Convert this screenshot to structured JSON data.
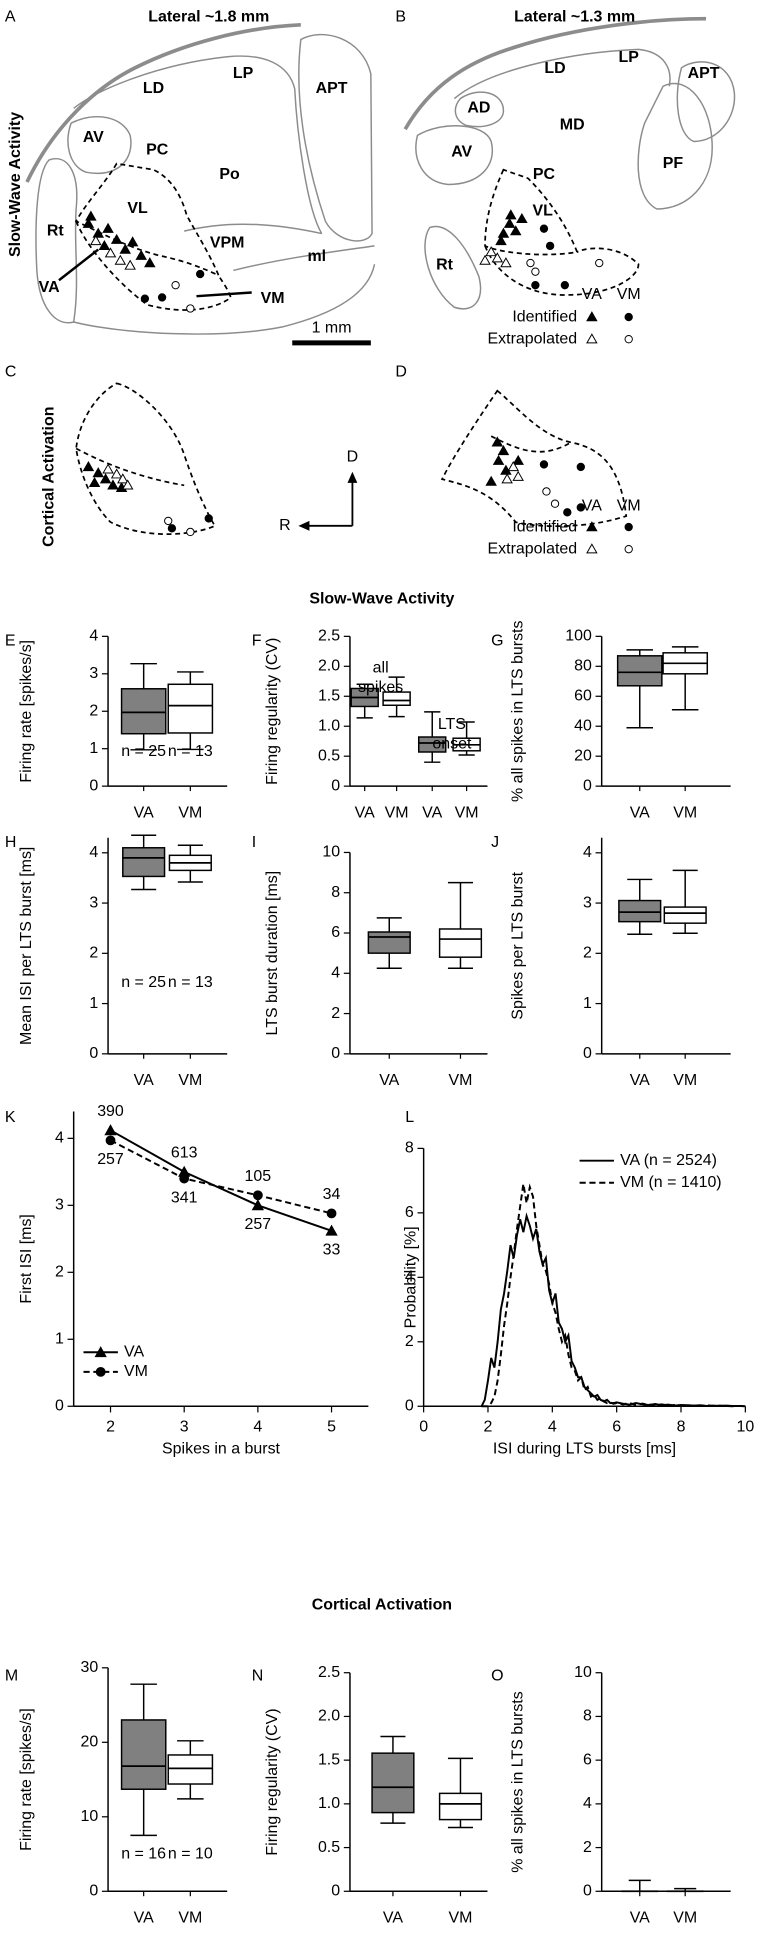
{
  "sections": [
    "Slow-Wave Activity",
    "Cortical Activation"
  ],
  "panels": [
    {
      "letter": "A",
      "title": "Lateral ~1.8 mm",
      "regions": [
        "LD",
        "LP",
        "APT",
        "AV",
        "PC",
        "Po",
        "VL",
        "Rt",
        "VPM",
        "ml"
      ],
      "nuclei": [
        "VA",
        "VM"
      ],
      "scale_bar": "1 mm"
    },
    {
      "letter": "B",
      "title": "Lateral ~1.3 mm",
      "regions": [
        "AD",
        "LD",
        "LP",
        "APT",
        "MD",
        "AV",
        "PF",
        "PC",
        "VL",
        "Rt"
      ],
      "legend": {
        "columns": [
          "VA",
          "VM"
        ],
        "rows": [
          "Identified",
          "Extrapolated"
        ]
      }
    },
    {
      "letter": "C"
    },
    {
      "letter": "D",
      "legend": {
        "columns": [
          "VA",
          "VM"
        ],
        "rows": [
          "Identified",
          "Extrapolated"
        ]
      }
    }
  ],
  "compass": [
    "D",
    "R"
  ],
  "chart_data": [
    {
      "type": "box",
      "panel": "E",
      "ylabel": "Firing rate [spikes/s]",
      "categories": [
        "VA",
        "VM"
      ],
      "colors": [
        "#808080",
        "#ffffff"
      ],
      "boxes": [
        {
          "min": 0.97,
          "q1": 1.4,
          "median": 1.97,
          "q3": 2.6,
          "max": 3.27
        },
        {
          "min": 0.98,
          "q1": 1.42,
          "median": 2.15,
          "q3": 2.72,
          "max": 3.05
        }
      ],
      "ylim": [
        0,
        4
      ],
      "yticks": [
        0,
        1,
        2,
        3,
        4
      ],
      "annotations": [
        "n = 25",
        "n = 13"
      ]
    },
    {
      "type": "box",
      "panel": "F",
      "ylabel": "Firing regularity (CV)",
      "categories": [
        "VA",
        "VM",
        "VA",
        "VM"
      ],
      "colors": [
        "#808080",
        "#ffffff",
        "#808080",
        "#ffffff"
      ],
      "boxes": [
        {
          "min": 1.14,
          "q1": 1.33,
          "median": 1.48,
          "q3": 1.63,
          "max": 1.7
        },
        {
          "min": 1.16,
          "q1": 1.35,
          "median": 1.43,
          "q3": 1.57,
          "max": 1.82
        },
        {
          "min": 0.4,
          "q1": 0.57,
          "median": 0.72,
          "q3": 0.82,
          "max": 1.24
        },
        {
          "min": 0.52,
          "q1": 0.59,
          "median": 0.69,
          "q3": 0.8,
          "max": 1.07
        }
      ],
      "ylim": [
        0,
        2.5
      ],
      "yticks": [
        0,
        0.5,
        {
          "value": 1,
          "label": "1.0"
        },
        1.5,
        {
          "value": 2,
          "label": "2.0"
        },
        2.5
      ],
      "group_labels": [
        [
          "all",
          "spikes"
        ],
        [
          "LTS",
          "onset"
        ]
      ]
    },
    {
      "type": "box",
      "panel": "G",
      "ylabel": "% all spikes in LTS bursts",
      "categories": [
        "VA",
        "VM"
      ],
      "colors": [
        "#808080",
        "#ffffff"
      ],
      "boxes": [
        {
          "min": 39,
          "q1": 67,
          "median": 76,
          "q3": 87,
          "max": 91
        },
        {
          "min": 51,
          "q1": 75,
          "median": 82,
          "q3": 89,
          "max": 93
        }
      ],
      "ylim": [
        0,
        100
      ],
      "yticks": [
        0,
        20,
        40,
        60,
        80,
        100
      ]
    },
    {
      "type": "box",
      "panel": "H",
      "ylabel": "Mean ISI per LTS burst [ms]",
      "categories": [
        "VA",
        "VM"
      ],
      "colors": [
        "#808080",
        "#ffffff"
      ],
      "boxes": [
        {
          "min": 3.27,
          "q1": 3.53,
          "median": 3.9,
          "q3": 4.1,
          "max": 4.35
        },
        {
          "min": 3.42,
          "q1": 3.65,
          "median": 3.8,
          "q3": 3.95,
          "max": 4.15
        }
      ],
      "ylim": [
        0,
        4.3
      ],
      "yticks": [
        0,
        1,
        2,
        3,
        4
      ],
      "annotations": [
        "n = 25",
        "n = 13"
      ]
    },
    {
      "type": "box",
      "panel": "I",
      "ylabel": "LTS burst duration [ms]",
      "categories": [
        "VA",
        "VM"
      ],
      "colors": [
        "#808080",
        "#ffffff"
      ],
      "boxes": [
        {
          "min": 4.25,
          "q1": 5.0,
          "median": 5.8,
          "q3": 6.05,
          "max": 6.75
        },
        {
          "min": 4.25,
          "q1": 4.8,
          "median": 5.7,
          "q3": 6.2,
          "max": 8.5
        }
      ],
      "ylim": [
        0,
        10
      ],
      "yticks": [
        0,
        2,
        4,
        6,
        8,
        10
      ]
    },
    {
      "type": "box",
      "panel": "J",
      "ylabel": "Spikes per LTS burst",
      "categories": [
        "VA",
        "VM"
      ],
      "colors": [
        "#808080",
        "#ffffff"
      ],
      "boxes": [
        {
          "min": 2.38,
          "q1": 2.63,
          "median": 2.82,
          "q3": 3.05,
          "max": 3.47
        },
        {
          "min": 2.4,
          "q1": 2.6,
          "median": 2.8,
          "q3": 2.92,
          "max": 3.65
        }
      ],
      "ylim": [
        0,
        4.3
      ],
      "yticks": [
        0,
        1,
        2,
        3,
        4
      ]
    },
    {
      "type": "line",
      "panel": "K",
      "xlabel": "Spikes in a burst",
      "ylabel": "First ISI [ms]",
      "x": [
        2,
        3,
        4,
        5
      ],
      "series": [
        {
          "name": "VA",
          "color": "#000000",
          "dash": false,
          "marker": "triangle",
          "values": [
            4.12,
            3.5,
            3.0,
            2.62
          ],
          "n": [
            390,
            613,
            257,
            33
          ]
        },
        {
          "name": "VM",
          "color": "#000000",
          "dash": true,
          "marker": "circle",
          "values": [
            3.97,
            3.4,
            3.15,
            2.88
          ],
          "n": [
            257,
            341,
            105,
            34
          ]
        }
      ],
      "xlim": [
        1.5,
        5.5
      ],
      "xticks": [
        2,
        3,
        4,
        5
      ],
      "ylim": [
        0,
        4.4
      ],
      "yticks": [
        0,
        1,
        2,
        3,
        4
      ],
      "legend": "lower left"
    },
    {
      "type": "line",
      "panel": "L",
      "xlabel": "ISI during LTS bursts [ms]",
      "ylabel": "Probability [%]",
      "x": [
        1.8,
        1.9,
        2.0,
        2.1,
        2.2,
        2.3,
        2.4,
        2.5,
        2.6,
        2.7,
        2.8,
        2.9,
        3.0,
        3.1,
        3.2,
        3.3,
        3.4,
        3.5,
        3.6,
        3.7,
        3.8,
        3.9,
        4.0,
        4.1,
        4.2,
        4.3,
        4.4,
        4.5,
        4.6,
        4.7,
        4.8,
        4.9,
        5.0,
        5.1,
        5.2,
        5.3,
        5.4,
        5.5,
        5.6,
        5.7,
        5.8,
        5.9,
        6.0,
        6.2,
        6.4,
        6.6,
        6.8,
        7.0,
        7.2,
        7.4,
        7.6,
        7.8,
        8.0,
        8.2,
        8.4,
        8.6,
        8.8,
        9.0,
        9.2,
        9.4,
        9.6,
        9.8,
        10.0
      ],
      "series": [
        {
          "name": "VA (n = 2524)",
          "color": "#000000",
          "dash": false,
          "values": [
            0,
            0.2,
            0.8,
            1.5,
            1.2,
            2.0,
            3.0,
            3.5,
            4.2,
            5.0,
            4.6,
            5.3,
            5.8,
            5.4,
            5.9,
            5.6,
            5.2,
            5.5,
            4.8,
            4.4,
            4.6,
            3.6,
            3.2,
            3.5,
            2.6,
            2.4,
            2.0,
            2.2,
            1.4,
            1.2,
            0.9,
            0.9,
            0.6,
            0.5,
            0.4,
            0.3,
            0.35,
            0.2,
            0.15,
            0.2,
            0.1,
            0.1,
            0.12,
            0.08,
            0.05,
            0.1,
            0.06,
            0.04,
            0.07,
            0.03,
            0.05,
            0.02,
            0.04,
            0.03,
            0.02,
            0.03,
            0.01,
            0.02,
            0.01,
            0.02,
            0.01,
            0.01,
            0
          ]
        },
        {
          "name": "VM (n = 1410)",
          "color": "#000000",
          "dash": true,
          "values": [
            0,
            0,
            0,
            0.1,
            0.3,
            0.8,
            1.6,
            2.5,
            3.2,
            4.0,
            4.7,
            5.5,
            6.2,
            6.9,
            6.3,
            6.8,
            6.5,
            5.6,
            5.0,
            4.4,
            4.2,
            3.8,
            3.2,
            2.9,
            2.4,
            2.0,
            2.2,
            1.6,
            1.2,
            1.1,
            0.8,
            0.9,
            0.5,
            0.6,
            0.3,
            0.35,
            0.2,
            0.25,
            0.15,
            0.1,
            0.12,
            0.08,
            0.1,
            0.06,
            0.1,
            0.04,
            0.08,
            0.05,
            0.03,
            0.06,
            0.02,
            0.04,
            0.02,
            0.03,
            0.02,
            0.01,
            0.03,
            0.01,
            0.02,
            0.01,
            0,
            0.01,
            0
          ]
        }
      ],
      "xlim": [
        0,
        10
      ],
      "xticks": [
        0,
        2,
        4,
        6,
        8,
        10
      ],
      "ylim": [
        0,
        8
      ],
      "yticks": [
        0,
        2,
        4,
        6,
        8
      ],
      "legend": "upper right"
    },
    {
      "type": "box",
      "panel": "M",
      "ylabel": "Firing rate [spikes/s]",
      "categories": [
        "VA",
        "VM"
      ],
      "colors": [
        "#808080",
        "#ffffff"
      ],
      "boxes": [
        {
          "min": 7.5,
          "q1": 13.7,
          "median": 16.8,
          "q3": 23,
          "max": 27.8
        },
        {
          "min": 12.4,
          "q1": 14.4,
          "median": 16.5,
          "q3": 18.3,
          "max": 20.2
        }
      ],
      "ylim": [
        0,
        30
      ],
      "yticks": [
        0,
        10,
        20,
        30
      ],
      "annotations": [
        "n = 16",
        "n = 10"
      ]
    },
    {
      "type": "box",
      "panel": "N",
      "ylabel": "Firing regularity (CV)",
      "categories": [
        "VA",
        "VM"
      ],
      "colors": [
        "#808080",
        "#ffffff"
      ],
      "boxes": [
        {
          "min": 0.78,
          "q1": 0.9,
          "median": 1.19,
          "q3": 1.58,
          "max": 1.77
        },
        {
          "min": 0.73,
          "q1": 0.82,
          "median": 1.0,
          "q3": 1.12,
          "max": 1.52
        }
      ],
      "ylim": [
        0,
        2.5
      ],
      "yticks": [
        0,
        0.5,
        {
          "value": 1,
          "label": "1.0"
        },
        1.5,
        {
          "value": 2,
          "label": "2.0"
        },
        2.5
      ]
    },
    {
      "type": "box",
      "panel": "O",
      "ylabel": "% all spikes in LTS bursts",
      "categories": [
        "VA",
        "VM"
      ],
      "colors": [
        "#808080",
        "#ffffff"
      ],
      "boxes": [
        {
          "min": 0,
          "q1": 0,
          "median": 0,
          "q3": 0,
          "max": 0.5
        },
        {
          "min": 0,
          "q1": 0,
          "median": 0,
          "q3": 0,
          "max": 0.12
        }
      ],
      "ylim": [
        0,
        10
      ],
      "yticks": [
        0,
        2,
        4,
        6,
        8,
        10
      ]
    }
  ]
}
